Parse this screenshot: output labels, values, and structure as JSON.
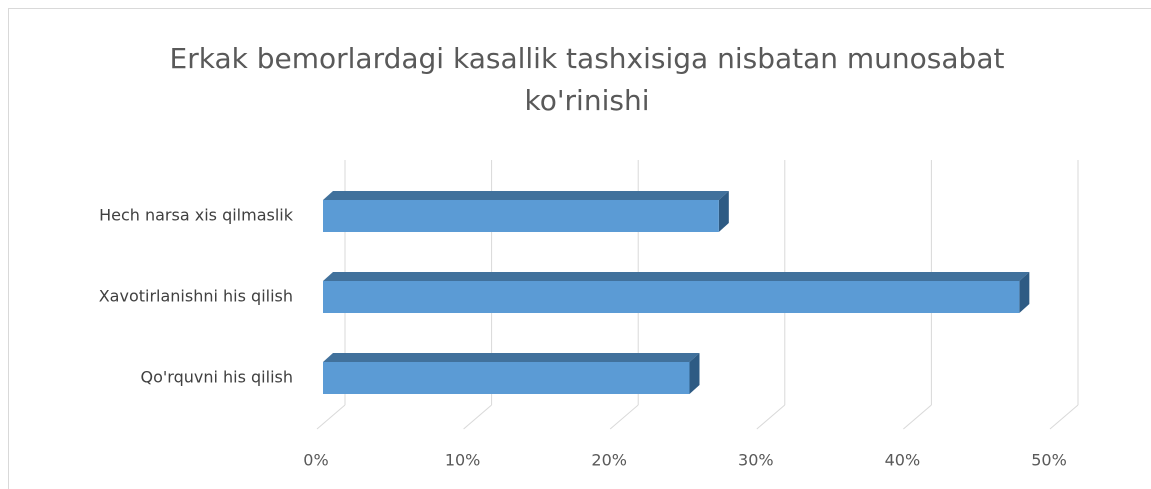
{
  "chart_data": {
    "type": "bar3d_horizontal",
    "title": "Erkak bemorlardagi kasallik tashxisiga nisbatan munosabat ko'rinishi",
    "categories": [
      "Qo'rquvni his qilish",
      "Xavotirlanishni his qilish",
      "Hech narsa xis qilmaslik"
    ],
    "values": [
      25,
      47.5,
      27
    ],
    "color": "#5b9bd5",
    "xlim": [
      0,
      50
    ],
    "xticks": [
      {
        "value": 0,
        "label": "0%"
      },
      {
        "value": 10,
        "label": "10%"
      },
      {
        "value": 20,
        "label": "20%"
      },
      {
        "value": 30,
        "label": "30%"
      },
      {
        "value": 40,
        "label": "40%"
      },
      {
        "value": 50,
        "label": "50%"
      }
    ],
    "grid": true
  }
}
